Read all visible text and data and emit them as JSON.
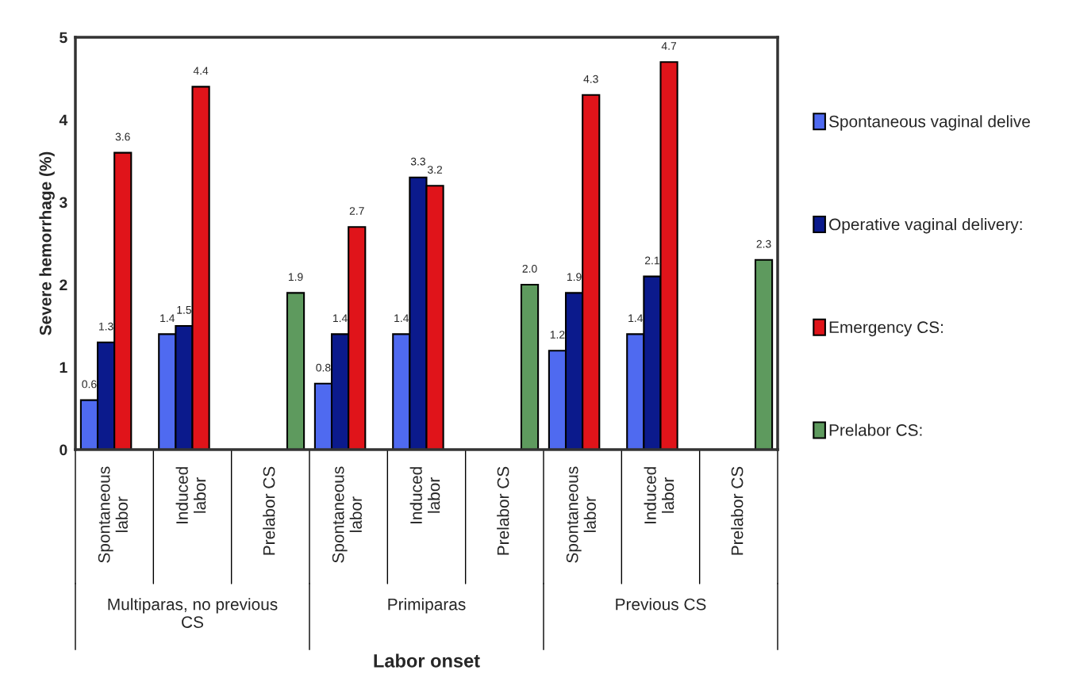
{
  "chart_data": {
    "type": "bar",
    "xlabel": "Labor onset",
    "ylabel": "Severe hemorrhage (%)",
    "categories": [
      "Spontaneous\nlabor",
      "Induced\nlabor",
      "Prelabor CS",
      "Spontaneous\nlabor",
      "Induced\nlabor",
      "Prelabor CS",
      "Spontaneous\nlabor",
      "Induced\nlabor",
      "Prelabor CS"
    ],
    "series": [
      {
        "name": "Spontaneous vaginal delive",
        "color": "#4f6af0",
        "values": [
          0.6,
          1.4,
          null,
          0.8,
          1.4,
          null,
          1.2,
          1.4,
          null
        ],
        "value_labels": [
          "0.6",
          "1.4",
          null,
          "0.8",
          "1.4",
          null,
          "1.2",
          "1.4",
          null
        ]
      },
      {
        "name": "Operative vaginal delivery:",
        "color": "#0b1a8c",
        "values": [
          1.3,
          1.5,
          null,
          1.4,
          3.3,
          null,
          1.9,
          2.1,
          null
        ],
        "value_labels": [
          "1.3",
          "1.5",
          null,
          "1.4",
          "3.3",
          null,
          "1.9",
          "2.1",
          null
        ]
      },
      {
        "name": "Emergency CS:",
        "color": "#e0141a",
        "values": [
          3.6,
          4.4,
          null,
          2.7,
          3.2,
          null,
          4.3,
          4.7,
          null
        ],
        "value_labels": [
          "3.6",
          "4.4",
          null,
          "2.7",
          "3.2",
          null,
          "4.3",
          "4.7",
          null
        ]
      },
      {
        "name": "Prelabor CS:",
        "color": "#5e9a5e",
        "values": [
          null,
          null,
          1.9,
          null,
          null,
          2,
          null,
          null,
          2.3
        ],
        "value_labels": [
          null,
          null,
          "1.9",
          null,
          null,
          "2.0",
          null,
          null,
          "2.3"
        ]
      }
    ],
    "annotations": [
      "Multiparas, no previous\nCS",
      "Primiparas",
      "Previous CS"
    ],
    "ylim": [
      0,
      5
    ],
    "yticks": [
      0,
      1,
      2,
      3,
      4,
      5
    ],
    "grid": false,
    "legend": "right"
  }
}
